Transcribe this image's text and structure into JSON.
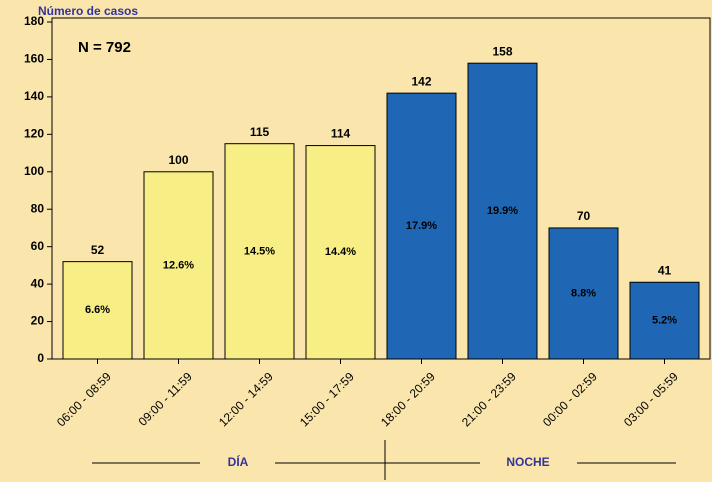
{
  "chart_data": {
    "type": "bar",
    "y_label": "Número de casos",
    "annotation": "N = 792",
    "categories": [
      "06:00 - 08:59",
      "09:00 - 11:59",
      "12:00 - 14:59",
      "15:00 - 17:59",
      "18:00 - 20:59",
      "21:00 - 23:59",
      "00:00 - 02:59",
      "03:00 - 05:59"
    ],
    "series": [
      {
        "name": "DÍA",
        "color": "#f7ee86",
        "values": [
          52,
          100,
          115,
          114,
          null,
          null,
          null,
          null
        ],
        "shares": [
          {
            "value": 6.6,
            "label": "6.6%"
          },
          {
            "value": 12.6,
            "label": "12.6%"
          },
          {
            "value": 14.5,
            "label": "14.5%"
          },
          {
            "value": 14.4,
            "label": "14.4%"
          },
          null,
          null,
          null,
          null
        ]
      },
      {
        "name": "NOCHE",
        "color": "#1f67b4",
        "values": [
          null,
          null,
          null,
          null,
          142,
          158,
          70,
          41
        ],
        "shares": [
          null,
          null,
          null,
          null,
          {
            "value": 17.9,
            "label": "17.9%"
          },
          {
            "value": 19.9,
            "label": "19.9%"
          },
          {
            "value": 8.8,
            "label": "8.8%"
          },
          {
            "value": 5.2,
            "label": "5.2%"
          }
        ]
      }
    ],
    "ylim": [
      0,
      180
    ],
    "yticks": [
      0,
      20,
      40,
      60,
      80,
      100,
      120,
      140,
      160,
      180
    ]
  }
}
